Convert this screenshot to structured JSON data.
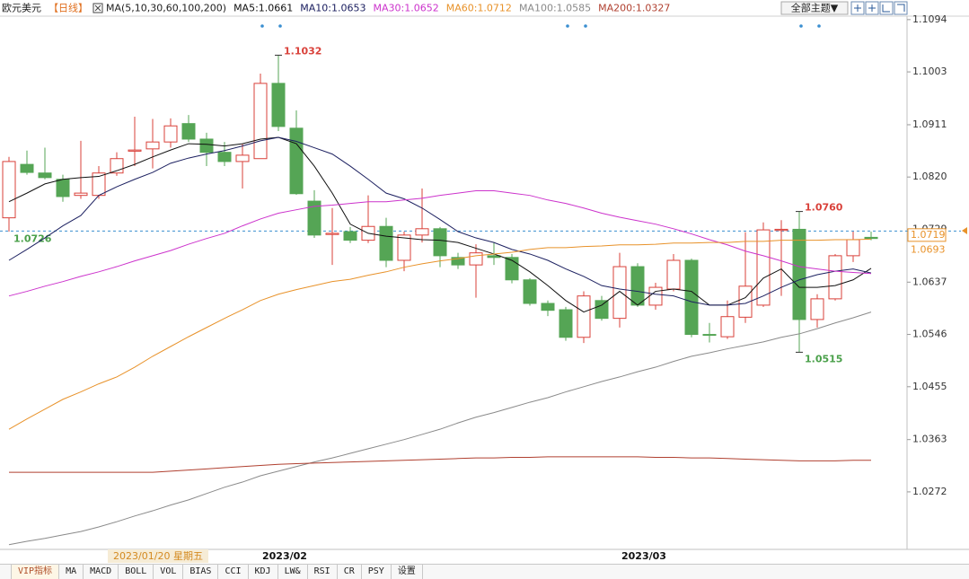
{
  "header": {
    "symbol": "欧元美元",
    "period": "【日线】",
    "ma_params": "MA(5,10,30,60,100,200)",
    "theme_button": "全部主题▼"
  },
  "chart_data": {
    "type": "candlestick",
    "categories": [
      null,
      null,
      null,
      null,
      null,
      null,
      null,
      null,
      null,
      null,
      null,
      null,
      null,
      null,
      "2023/02",
      null,
      null,
      null,
      null,
      null,
      null,
      null,
      null,
      null,
      null,
      null,
      null,
      null,
      null,
      null,
      null,
      null,
      null,
      null,
      "2023/03",
      null,
      null,
      null,
      null,
      null,
      null,
      null,
      null,
      null,
      null,
      null,
      null,
      null,
      null
    ],
    "open": [
      1.0749,
      1.0842,
      1.0827,
      1.0816,
      1.0788,
      1.0788,
      1.0827,
      1.0865,
      1.0869,
      1.0881,
      1.0913,
      1.0886,
      1.0863,
      1.0847,
      1.0852,
      1.0983,
      1.0905,
      1.0778,
      1.072,
      1.0725,
      1.071,
      1.0734,
      1.0675,
      1.0719,
      1.073,
      1.068,
      1.0667,
      1.0683,
      1.068,
      1.0641,
      1.06,
      1.0589,
      1.0541,
      1.0605,
      1.0574,
      1.0664,
      1.0597,
      1.0625,
      1.0675,
      1.0546,
      1.0542,
      1.0576,
      1.0597,
      1.0727,
      1.0729,
      1.0572,
      1.0608,
      1.0683,
      1.0715
    ],
    "high": [
      1.0855,
      1.0866,
      1.0871,
      1.0824,
      1.0883,
      1.0839,
      1.0863,
      1.0925,
      1.0921,
      1.0922,
      1.0928,
      1.0897,
      1.0881,
      1.0878,
      1.1,
      1.1032,
      1.0936,
      1.0797,
      1.0766,
      1.0733,
      1.0788,
      1.0749,
      1.0725,
      1.08,
      1.0733,
      1.0688,
      1.0703,
      1.0706,
      1.0686,
      1.0644,
      1.0605,
      1.0594,
      1.0621,
      1.0613,
      1.0688,
      1.067,
      1.0636,
      1.0686,
      1.0678,
      1.0566,
      1.0605,
      1.0724,
      1.0741,
      1.0745,
      1.076,
      1.0616,
      1.0686,
      1.0725,
      1.0725
    ],
    "low": [
      1.0725,
      1.0824,
      1.0816,
      1.0777,
      1.0782,
      1.0782,
      1.0822,
      1.0839,
      1.0835,
      1.0871,
      1.0881,
      1.0839,
      1.0839,
      1.08,
      1.0852,
      1.09,
      1.0789,
      1.0714,
      1.0667,
      1.0705,
      1.0705,
      1.0663,
      1.0656,
      1.0706,
      1.0663,
      1.066,
      1.061,
      1.0667,
      1.0635,
      1.0596,
      1.0578,
      1.0535,
      1.0531,
      1.057,
      1.0558,
      1.0594,
      1.0589,
      1.0621,
      1.0541,
      1.0532,
      1.0538,
      1.0566,
      1.0594,
      1.0613,
      1.0515,
      1.0558,
      1.0605,
      1.0672,
      1.071
    ],
    "close": [
      1.0847,
      1.0828,
      1.0819,
      1.0786,
      1.0792,
      1.0827,
      1.0852,
      1.0867,
      1.0881,
      1.0909,
      1.0886,
      1.0863,
      1.0847,
      1.0858,
      1.0983,
      1.0908,
      1.0791,
      1.0719,
      1.0722,
      1.071,
      1.0734,
      1.0675,
      1.0719,
      1.073,
      1.0683,
      1.0667,
      1.0688,
      1.068,
      1.0641,
      1.06,
      1.0588,
      1.0541,
      1.0613,
      1.0574,
      1.0664,
      1.0597,
      1.0628,
      1.0675,
      1.0546,
      1.0545,
      1.0577,
      1.063,
      1.0728,
      1.0729,
      1.0572,
      1.0608,
      1.0683,
      1.0711,
      1.0713
    ],
    "up_color": "#d9413a",
    "down_color": "#55a555",
    "series": [
      {
        "legend": "MA5:1.0661",
        "color": "#111111",
        "values": [
          1.0777,
          1.0792,
          1.0808,
          1.0816,
          1.0819,
          1.0821,
          1.0831,
          1.0842,
          1.0855,
          1.0867,
          1.0878,
          1.0877,
          1.0874,
          1.0878,
          1.0886,
          1.0889,
          1.0878,
          1.0839,
          1.0792,
          1.0738,
          1.0722,
          1.0717,
          1.0714,
          1.0711,
          1.071,
          1.0706,
          1.0696,
          1.0686,
          1.0675,
          1.0655,
          1.0631,
          1.0605,
          1.0585,
          1.0597,
          1.0621,
          1.0597,
          1.0621,
          1.0625,
          1.0621,
          1.0597,
          1.0597,
          1.061,
          1.0644,
          1.066,
          1.0628,
          1.0628,
          1.0631,
          1.0641,
          1.0661
        ]
      },
      {
        "legend": "MA10:1.0653",
        "color": "#1c2060",
        "values": [
          1.0675,
          1.0694,
          1.0714,
          1.0735,
          1.0753,
          1.0788,
          1.0803,
          1.0816,
          1.0828,
          1.0844,
          1.0853,
          1.086,
          1.0866,
          1.0874,
          1.0883,
          1.0889,
          1.0882,
          1.0871,
          1.086,
          1.0839,
          1.0816,
          1.0792,
          1.0782,
          1.0766,
          1.0746,
          1.0725,
          1.0714,
          1.0706,
          1.0694,
          1.0686,
          1.0675,
          1.066,
          1.0647,
          1.0631,
          1.0625,
          1.0621,
          1.0616,
          1.0613,
          1.0603,
          1.0597,
          1.0597,
          1.06,
          1.0613,
          1.0628,
          1.0641,
          1.065,
          1.0656,
          1.066,
          1.0653
        ]
      },
      {
        "legend": "MA30:1.0652",
        "color": "#cc33cc",
        "values": [
          1.0613,
          1.0621,
          1.063,
          1.0638,
          1.0647,
          1.0655,
          1.0664,
          1.0674,
          1.0683,
          1.0692,
          1.0703,
          1.0713,
          1.0722,
          1.0735,
          1.0747,
          1.0757,
          1.0763,
          1.0769,
          1.0771,
          1.0774,
          1.0777,
          1.0777,
          1.078,
          1.0783,
          1.0788,
          1.0792,
          1.0796,
          1.0796,
          1.0792,
          1.0788,
          1.078,
          1.0774,
          1.0766,
          1.0757,
          1.075,
          1.0744,
          1.0738,
          1.073,
          1.0721,
          1.0711,
          1.0702,
          1.0691,
          1.0683,
          1.0674,
          1.0664,
          1.066,
          1.0656,
          1.0654,
          1.0652
        ]
      },
      {
        "legend": "MA60:1.0712",
        "color": "#e8922a",
        "values": [
          1.0381,
          1.0399,
          1.0416,
          1.0433,
          1.0446,
          1.046,
          1.0472,
          1.0489,
          1.0508,
          1.0525,
          1.0542,
          1.0558,
          1.0574,
          1.0589,
          1.0605,
          1.0616,
          1.0624,
          1.0631,
          1.0638,
          1.0642,
          1.0649,
          1.0655,
          1.0663,
          1.0669,
          1.0674,
          1.0678,
          1.0683,
          1.0686,
          1.0689,
          1.0694,
          1.0697,
          1.0697,
          1.0699,
          1.07,
          1.0702,
          1.0702,
          1.0703,
          1.0705,
          1.0705,
          1.0706,
          1.0706,
          1.0708,
          1.0708,
          1.071,
          1.071,
          1.071,
          1.0711,
          1.0711,
          1.0712
        ]
      },
      {
        "legend": "MA100:1.0585",
        "color": "#8a8a8a",
        "values": [
          1.018,
          1.0186,
          1.0191,
          1.0197,
          1.0203,
          1.0211,
          1.022,
          1.023,
          1.0239,
          1.0249,
          1.0258,
          1.0269,
          1.028,
          1.0289,
          1.03,
          1.0308,
          1.0316,
          1.0324,
          1.0331,
          1.0339,
          1.0347,
          1.0355,
          1.0363,
          1.0372,
          1.0381,
          1.0392,
          1.0402,
          1.041,
          1.0419,
          1.0428,
          1.0436,
          1.0446,
          1.0455,
          1.0464,
          1.0472,
          1.0481,
          1.0489,
          1.0499,
          1.0508,
          1.0514,
          1.0521,
          1.0527,
          1.0533,
          1.0541,
          1.0547,
          1.0556,
          1.0566,
          1.0575,
          1.0585
        ]
      },
      {
        "legend": "MA200:1.0327",
        "color": "#b04030",
        "values": [
          1.0306,
          1.0306,
          1.0306,
          1.0306,
          1.0306,
          1.0306,
          1.0306,
          1.0306,
          1.0306,
          1.0308,
          1.031,
          1.0312,
          1.0314,
          1.0316,
          1.0318,
          1.032,
          1.0321,
          1.0322,
          1.0323,
          1.0324,
          1.0325,
          1.0326,
          1.0327,
          1.0328,
          1.0329,
          1.033,
          1.0331,
          1.0331,
          1.0332,
          1.0332,
          1.0333,
          1.0333,
          1.0333,
          1.0333,
          1.0333,
          1.0333,
          1.0332,
          1.0332,
          1.0331,
          1.0331,
          1.033,
          1.0329,
          1.0328,
          1.0327,
          1.0326,
          1.0326,
          1.0326,
          1.0327,
          1.0327
        ]
      }
    ],
    "ylim": [
      1.0175,
      1.11
    ],
    "yticks": [
      1.1094,
      1.1003,
      1.0911,
      {
        "value": 1.082,
        "label": "1.0820"
      },
      1.0729,
      1.0637,
      1.0546,
      1.0455,
      1.0363,
      1.0272
    ],
    "crosshair": {
      "value": 1.0726,
      "color": "#4aa04a",
      "date": "2023/01/20 星期五"
    },
    "price_tags": [
      {
        "value": 1.0719,
        "color": "#e8922a",
        "boxed": true
      },
      {
        "value": 1.0693,
        "color": "#e8922a",
        "boxed": false
      }
    ],
    "annotations": [
      {
        "value": 1.1032,
        "color": "#d9413a"
      },
      {
        "value": 1.076,
        "label": "1.0760",
        "color": "#d9413a"
      },
      {
        "value": 1.0515,
        "color": "#4aa04a"
      }
    ]
  },
  "tabs": [
    "VIP指标",
    "MA",
    "MACD",
    "BOLL",
    "VOL",
    "BIAS",
    "CCI",
    "KDJ",
    "LW&",
    "RSI",
    "CR",
    "PSY",
    "设置"
  ]
}
